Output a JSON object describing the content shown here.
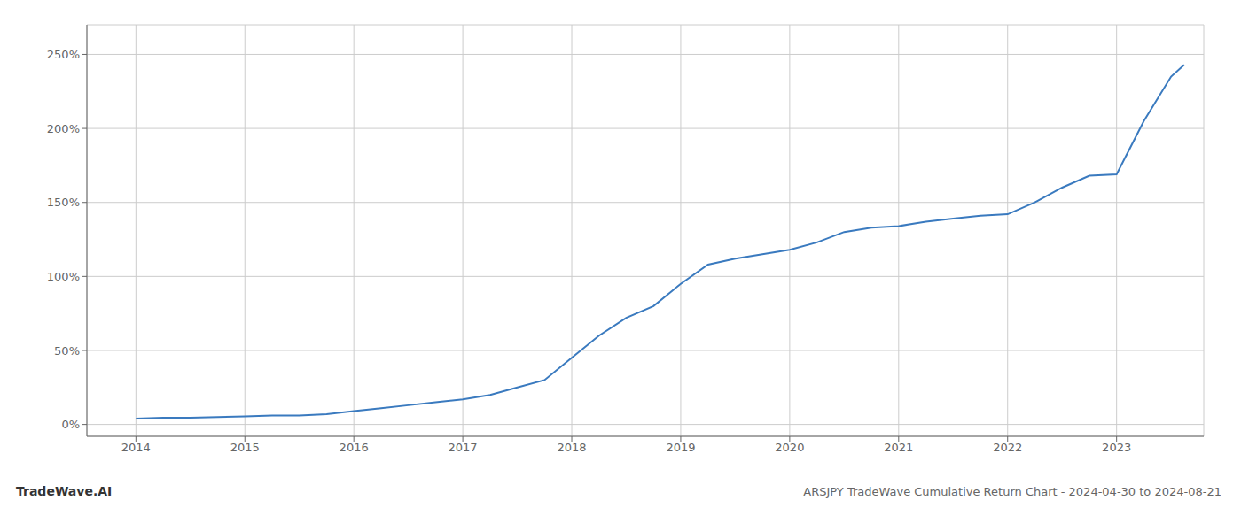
{
  "chart_data": {
    "type": "line",
    "title": "ARSJPY TradeWave Cumulative Return Chart - 2024-04-30 to 2024-08-21",
    "annotations": [
      "TradeWave.AI"
    ],
    "color": "#3a7abf",
    "grid": true,
    "xlim": [
      2013.55,
      2023.8
    ],
    "xticks": [
      2014,
      2015,
      2016,
      2017,
      2018,
      2019,
      2020,
      2021,
      2022,
      2023
    ],
    "ylim": [
      -8,
      270
    ],
    "yticks": [
      {
        "value": 0,
        "label": "0%"
      },
      {
        "value": 50,
        "label": "50%"
      },
      {
        "value": 100,
        "label": "100%"
      },
      {
        "value": 150,
        "label": "150%"
      },
      {
        "value": 200,
        "label": "200%"
      },
      {
        "value": 250,
        "label": "250%"
      }
    ],
    "x": [
      2014.0,
      2014.25,
      2014.5,
      2014.75,
      2015.0,
      2015.25,
      2015.5,
      2015.75,
      2016.0,
      2016.25,
      2016.5,
      2016.75,
      2017.0,
      2017.25,
      2017.5,
      2017.75,
      2018.0,
      2018.25,
      2018.5,
      2018.75,
      2019.0,
      2019.25,
      2019.5,
      2019.75,
      2020.0,
      2020.25,
      2020.5,
      2020.75,
      2021.0,
      2021.25,
      2021.5,
      2021.75,
      2022.0,
      2022.25,
      2022.5,
      2022.75,
      2023.0,
      2023.25,
      2023.5,
      2023.62
    ],
    "values": [
      4,
      4.5,
      4.5,
      5,
      5.5,
      6,
      6,
      7,
      9,
      11,
      13,
      15,
      17,
      20,
      25,
      30,
      45,
      60,
      72,
      80,
      95,
      108,
      112,
      115,
      118,
      123,
      130,
      133,
      134,
      137,
      139,
      141,
      142,
      150,
      160,
      168,
      169,
      205,
      235,
      243
    ]
  }
}
